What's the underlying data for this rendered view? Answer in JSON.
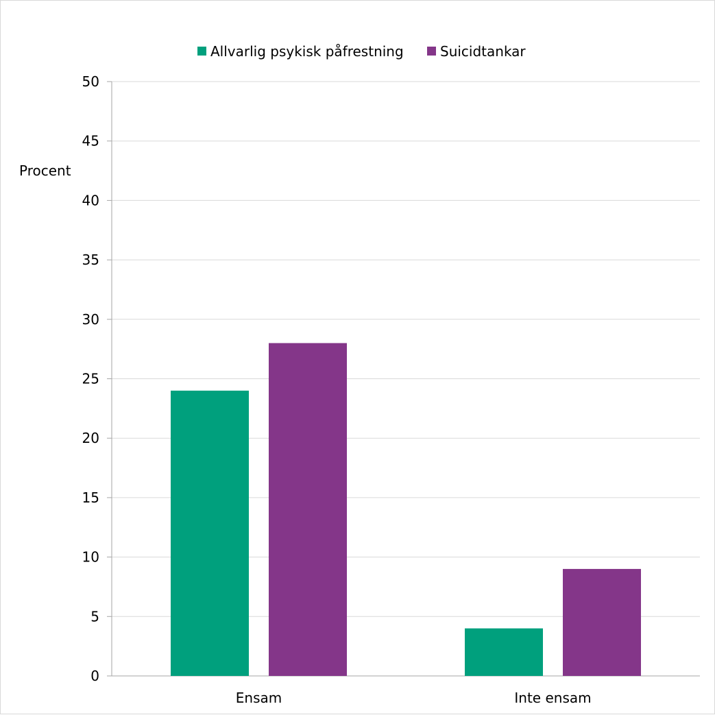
{
  "chart_data": {
    "type": "bar",
    "title": "",
    "xlabel": "",
    "ylabel": "Procent",
    "categories": [
      "Ensam",
      "Inte ensam"
    ],
    "series": [
      {
        "name": "Allvarlig psykisk påfrestning",
        "color": "#00A07D",
        "values": [
          24,
          4
        ]
      },
      {
        "name": "Suicidtankar",
        "color": "#843689",
        "values": [
          28,
          9
        ]
      }
    ],
    "ylim": [
      0,
      50
    ],
    "yticks": [
      0,
      5,
      10,
      15,
      20,
      25,
      30,
      35,
      40,
      45,
      50
    ],
    "grid": true,
    "legend_position": "top-center"
  }
}
